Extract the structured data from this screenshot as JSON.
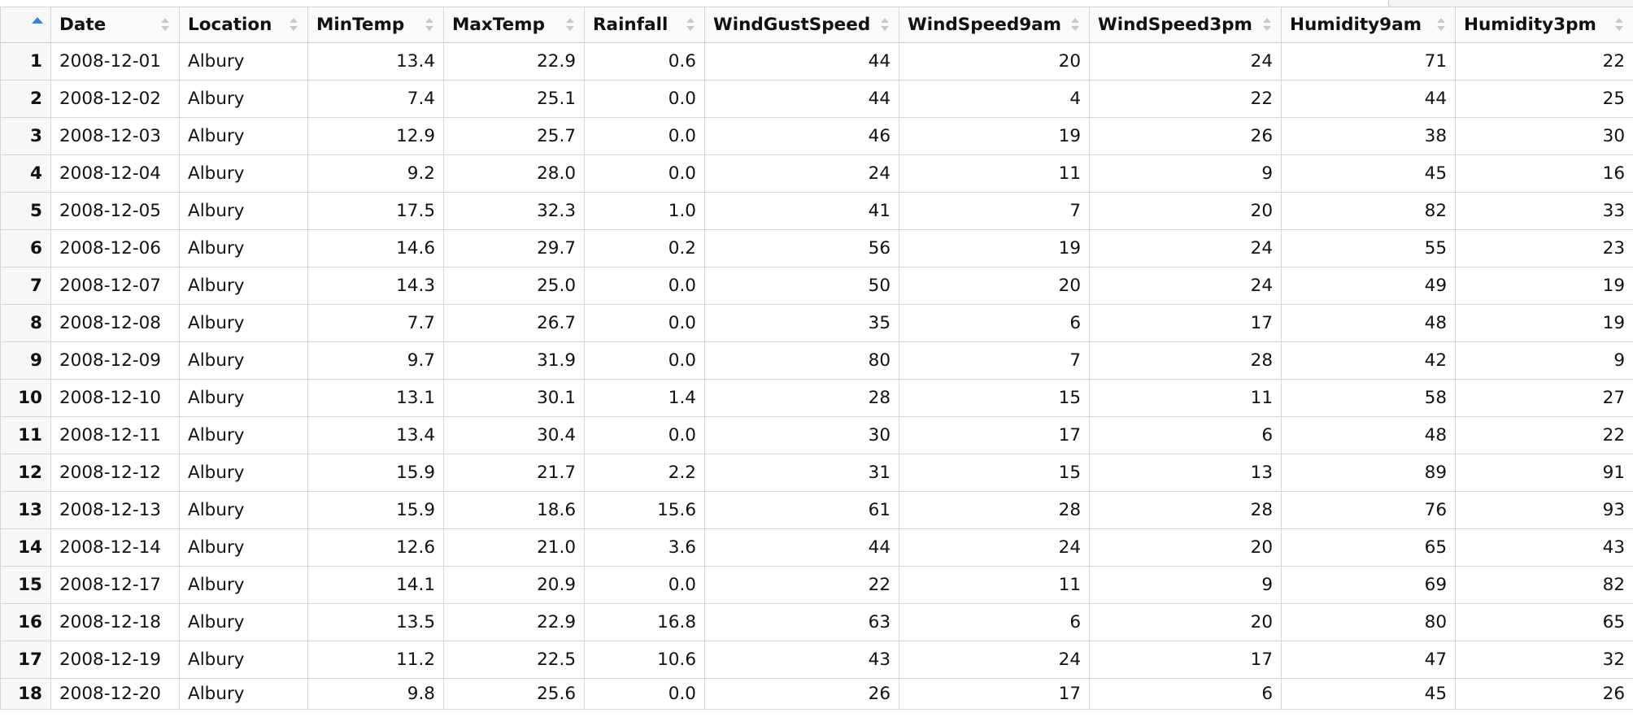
{
  "table": {
    "columns": [
      {
        "key": "Date",
        "label": "Date",
        "align": "left"
      },
      {
        "key": "Location",
        "label": "Location",
        "align": "left"
      },
      {
        "key": "MinTemp",
        "label": "MinTemp",
        "align": "right"
      },
      {
        "key": "MaxTemp",
        "label": "MaxTemp",
        "align": "right"
      },
      {
        "key": "Rainfall",
        "label": "Rainfall",
        "align": "right"
      },
      {
        "key": "WindGustSpeed",
        "label": "WindGustSpeed",
        "align": "right"
      },
      {
        "key": "WindSpeed9am",
        "label": "WindSpeed9am",
        "align": "right"
      },
      {
        "key": "WindSpeed3pm",
        "label": "WindSpeed3pm",
        "align": "right"
      },
      {
        "key": "Humidity9am",
        "label": "Humidity9am",
        "align": "right"
      },
      {
        "key": "Humidity3pm",
        "label": "Humidity3pm",
        "align": "right"
      }
    ],
    "rows": [
      {
        "n": "1",
        "cells": [
          "2008-12-01",
          "Albury",
          "13.4",
          "22.9",
          "0.6",
          "44",
          "20",
          "24",
          "71",
          "22"
        ]
      },
      {
        "n": "2",
        "cells": [
          "2008-12-02",
          "Albury",
          "7.4",
          "25.1",
          "0.0",
          "44",
          "4",
          "22",
          "44",
          "25"
        ]
      },
      {
        "n": "3",
        "cells": [
          "2008-12-03",
          "Albury",
          "12.9",
          "25.7",
          "0.0",
          "46",
          "19",
          "26",
          "38",
          "30"
        ]
      },
      {
        "n": "4",
        "cells": [
          "2008-12-04",
          "Albury",
          "9.2",
          "28.0",
          "0.0",
          "24",
          "11",
          "9",
          "45",
          "16"
        ]
      },
      {
        "n": "5",
        "cells": [
          "2008-12-05",
          "Albury",
          "17.5",
          "32.3",
          "1.0",
          "41",
          "7",
          "20",
          "82",
          "33"
        ]
      },
      {
        "n": "6",
        "cells": [
          "2008-12-06",
          "Albury",
          "14.6",
          "29.7",
          "0.2",
          "56",
          "19",
          "24",
          "55",
          "23"
        ]
      },
      {
        "n": "7",
        "cells": [
          "2008-12-07",
          "Albury",
          "14.3",
          "25.0",
          "0.0",
          "50",
          "20",
          "24",
          "49",
          "19"
        ]
      },
      {
        "n": "8",
        "cells": [
          "2008-12-08",
          "Albury",
          "7.7",
          "26.7",
          "0.0",
          "35",
          "6",
          "17",
          "48",
          "19"
        ]
      },
      {
        "n": "9",
        "cells": [
          "2008-12-09",
          "Albury",
          "9.7",
          "31.9",
          "0.0",
          "80",
          "7",
          "28",
          "42",
          "9"
        ]
      },
      {
        "n": "10",
        "cells": [
          "2008-12-10",
          "Albury",
          "13.1",
          "30.1",
          "1.4",
          "28",
          "15",
          "11",
          "58",
          "27"
        ]
      },
      {
        "n": "11",
        "cells": [
          "2008-12-11",
          "Albury",
          "13.4",
          "30.4",
          "0.0",
          "30",
          "17",
          "6",
          "48",
          "22"
        ]
      },
      {
        "n": "12",
        "cells": [
          "2008-12-12",
          "Albury",
          "15.9",
          "21.7",
          "2.2",
          "31",
          "15",
          "13",
          "89",
          "91"
        ]
      },
      {
        "n": "13",
        "cells": [
          "2008-12-13",
          "Albury",
          "15.9",
          "18.6",
          "15.6",
          "61",
          "28",
          "28",
          "76",
          "93"
        ]
      },
      {
        "n": "14",
        "cells": [
          "2008-12-14",
          "Albury",
          "12.6",
          "21.0",
          "3.6",
          "44",
          "24",
          "20",
          "65",
          "43"
        ]
      },
      {
        "n": "15",
        "cells": [
          "2008-12-17",
          "Albury",
          "14.1",
          "20.9",
          "0.0",
          "22",
          "11",
          "9",
          "69",
          "82"
        ]
      },
      {
        "n": "16",
        "cells": [
          "2008-12-18",
          "Albury",
          "13.5",
          "22.9",
          "16.8",
          "63",
          "6",
          "20",
          "80",
          "65"
        ]
      },
      {
        "n": "17",
        "cells": [
          "2008-12-19",
          "Albury",
          "11.2",
          "22.5",
          "10.6",
          "43",
          "24",
          "17",
          "47",
          "32"
        ]
      },
      {
        "n": "18",
        "cells": [
          "2008-12-20",
          "Albury",
          "9.8",
          "25.6",
          "0.0",
          "26",
          "17",
          "6",
          "45",
          "26"
        ]
      }
    ]
  },
  "icons": {
    "corner": "sort-ascending-icon",
    "header": "sort-icon"
  },
  "colors": {
    "accent": "#3b82d6",
    "header_bg": "#f9fafb",
    "grid_line": "#d6d6d6"
  }
}
